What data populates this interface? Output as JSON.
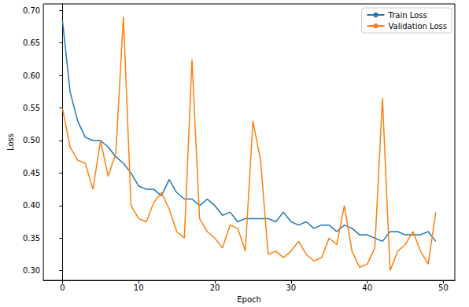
{
  "chart_data": {
    "type": "line",
    "x_label": "Epoch",
    "y_label": "Loss",
    "x": [
      0,
      1,
      2,
      3,
      4,
      5,
      6,
      7,
      8,
      9,
      10,
      11,
      12,
      13,
      14,
      15,
      16,
      17,
      18,
      19,
      20,
      21,
      22,
      23,
      24,
      25,
      26,
      27,
      28,
      29,
      30,
      31,
      32,
      33,
      34,
      35,
      36,
      37,
      38,
      39,
      40,
      41,
      42,
      43,
      44,
      45,
      46,
      47,
      48,
      49
    ],
    "series": [
      {
        "name": "Train Loss",
        "color": "#1f77b4",
        "values": [
          0.685,
          0.575,
          0.53,
          0.505,
          0.5,
          0.5,
          0.49,
          0.475,
          0.465,
          0.45,
          0.43,
          0.425,
          0.425,
          0.415,
          0.44,
          0.42,
          0.41,
          0.41,
          0.4,
          0.41,
          0.4,
          0.385,
          0.39,
          0.375,
          0.38,
          0.38,
          0.38,
          0.38,
          0.375,
          0.39,
          0.375,
          0.37,
          0.375,
          0.365,
          0.37,
          0.37,
          0.36,
          0.37,
          0.365,
          0.355,
          0.355,
          0.35,
          0.345,
          0.36,
          0.36,
          0.355,
          0.355,
          0.355,
          0.36,
          0.345
        ]
      },
      {
        "name": "Validation Loss",
        "color": "#ff7f0e",
        "values": [
          0.55,
          0.49,
          0.47,
          0.465,
          0.425,
          0.5,
          0.445,
          0.48,
          0.69,
          0.4,
          0.38,
          0.375,
          0.405,
          0.42,
          0.395,
          0.36,
          0.35,
          0.625,
          0.38,
          0.36,
          0.35,
          0.335,
          0.37,
          0.365,
          0.33,
          0.53,
          0.47,
          0.325,
          0.33,
          0.32,
          0.33,
          0.345,
          0.325,
          0.315,
          0.32,
          0.35,
          0.34,
          0.4,
          0.33,
          0.305,
          0.31,
          0.335,
          0.565,
          0.3,
          0.33,
          0.34,
          0.36,
          0.33,
          0.31,
          0.39
        ]
      }
    ],
    "xlim": [
      -2.5,
      51.5
    ],
    "xticks": [
      0,
      10,
      20,
      30,
      40,
      50
    ],
    "ylim": [
      0.285,
      0.71
    ],
    "yticks": [
      {
        "value": 0.3,
        "label": "0.30"
      },
      0.35,
      {
        "value": 0.4,
        "label": "0.40"
      },
      0.45,
      {
        "value": 0.5,
        "label": "0.50"
      },
      0.55,
      {
        "value": 0.6,
        "label": "0.60"
      },
      0.65,
      {
        "value": 0.7,
        "label": "0.70"
      }
    ],
    "grid": false,
    "legend": "upper right"
  }
}
